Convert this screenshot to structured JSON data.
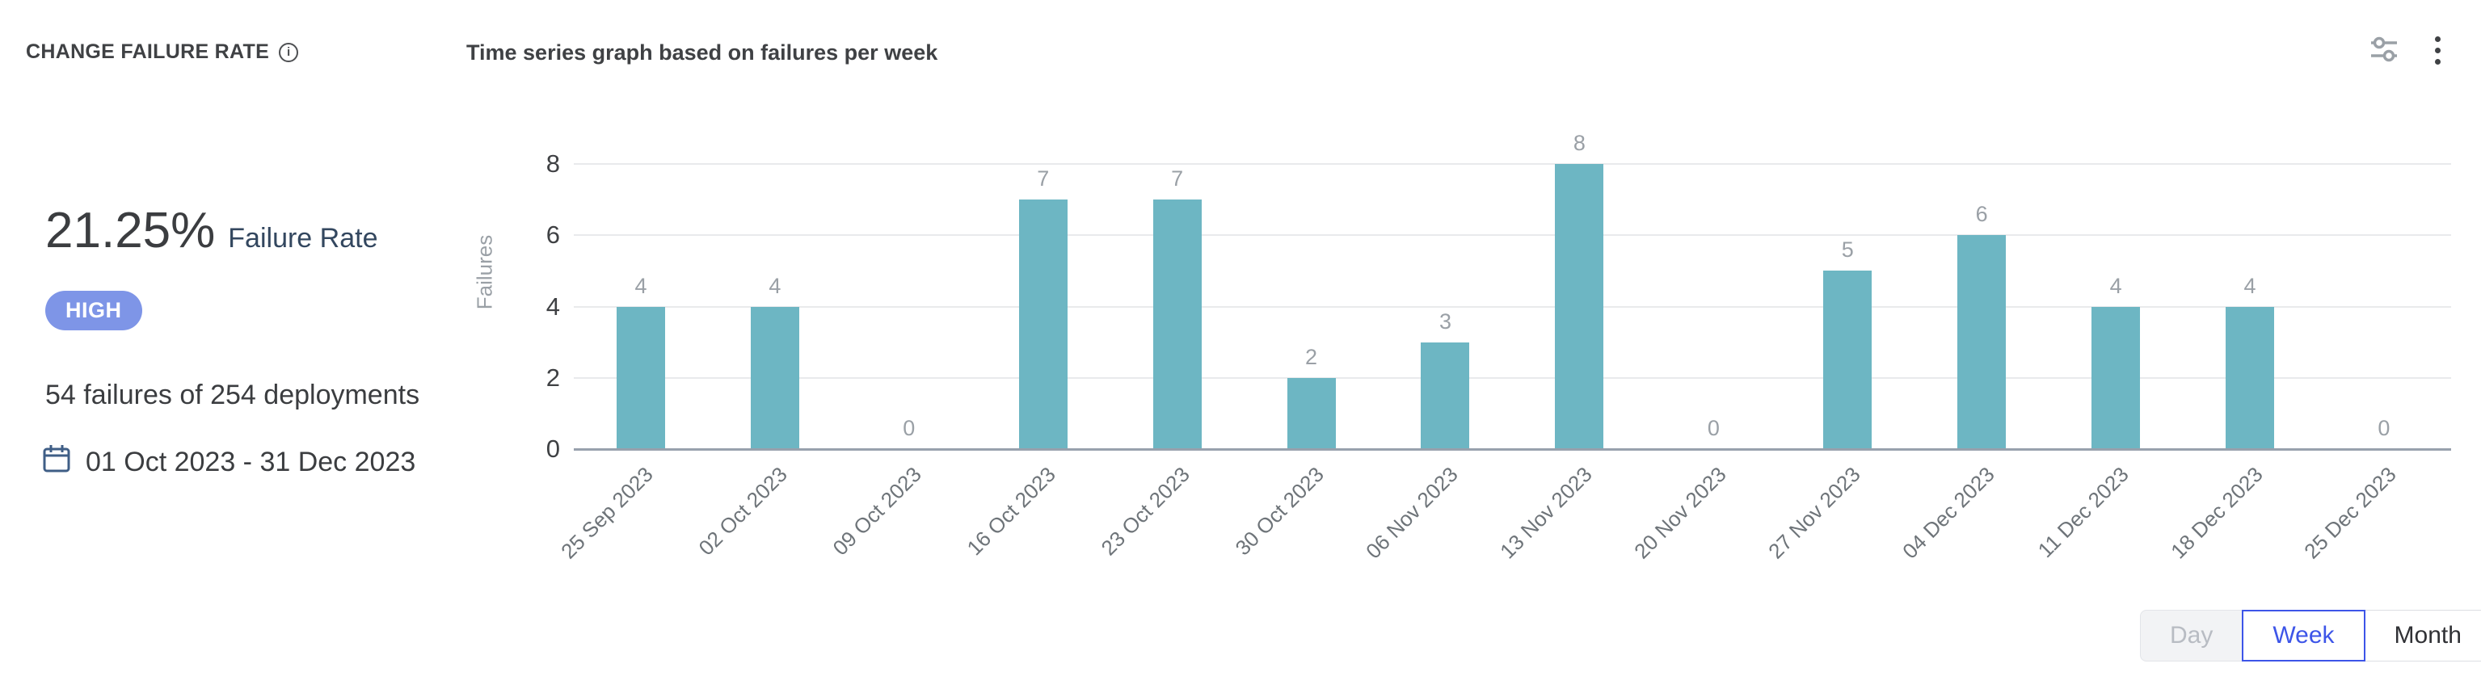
{
  "header": {
    "title": "CHANGE FAILURE RATE",
    "subtitle": "Time series graph based on failures per week"
  },
  "summary": {
    "rate_value": "21.25%",
    "rate_label": "Failure Rate",
    "severity_badge": "HIGH",
    "failures_text": "54 failures of 254 deployments",
    "date_range": "01 Oct 2023 - 31 Dec 2023"
  },
  "controls": {
    "granularity": [
      {
        "label": "Day",
        "state": "disabled"
      },
      {
        "label": "Week",
        "state": "selected"
      },
      {
        "label": "Month",
        "state": "default"
      }
    ]
  },
  "icons": {
    "title_info": "info-icon",
    "header_settings": "sliders-icon",
    "header_menu": "kebab-menu-icon",
    "date": "calendar-icon"
  },
  "colors": {
    "bar": "#6db6c3",
    "severity_badge": "#7e95e7",
    "accent_blue": "#3d55e8",
    "rate_label": "#33475f",
    "gridline": "#e9eaec",
    "axis_line": "#98a1ad"
  },
  "chart_data": {
    "type": "bar",
    "title": "Time series graph based on failures per week",
    "categories": [
      "25 Sep 2023",
      "02 Oct 2023",
      "09 Oct 2023",
      "16 Oct 2023",
      "23 Oct 2023",
      "30 Oct 2023",
      "06 Nov 2023",
      "13 Nov 2023",
      "20 Nov 2023",
      "27 Nov 2023",
      "04 Dec 2023",
      "11 Dec 2023",
      "18 Dec 2023",
      "25 Dec 2023"
    ],
    "values": [
      4,
      4,
      0,
      7,
      7,
      2,
      3,
      8,
      0,
      5,
      6,
      4,
      4,
      0
    ],
    "xlabel": "",
    "ylabel": "Failures",
    "ylim": [
      0,
      8
    ],
    "yticks": [
      0,
      2,
      4,
      6,
      8
    ],
    "grid": true,
    "legend": "none",
    "bar_color": "#6db6c3"
  }
}
